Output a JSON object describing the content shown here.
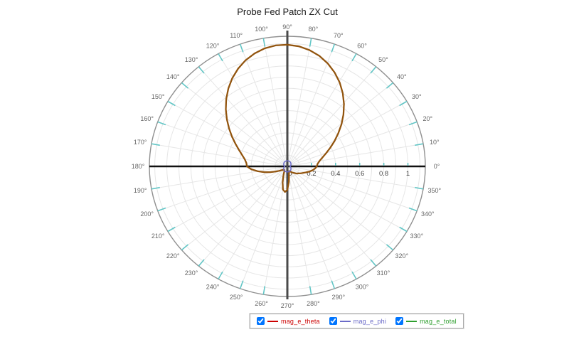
{
  "chart_data": {
    "type": "line",
    "subtype": "polar",
    "title": "Probe Fed Patch ZX Cut",
    "angle_unit": "deg",
    "angle_tick_labels": [
      "0°",
      "10°",
      "20°",
      "30°",
      "40°",
      "50°",
      "60°",
      "70°",
      "80°",
      "90°",
      "100°",
      "110°",
      "120°",
      "130°",
      "140°",
      "150°",
      "160°",
      "170°",
      "180°",
      "190°",
      "200°",
      "210°",
      "220°",
      "230°",
      "240°",
      "250°",
      "260°",
      "270°",
      "280°",
      "290°",
      "300°",
      "310°",
      "320°",
      "330°",
      "340°",
      "350°"
    ],
    "extra_angle_label": "350°",
    "radial_tick_labels": [
      "0",
      "0.2",
      "0.4",
      "0.6",
      "0.8",
      "1"
    ],
    "radial_ticks": [
      0,
      0.2,
      0.4,
      0.6,
      0.8,
      1.0
    ],
    "rmax": 1.15,
    "grid": true,
    "grid_ring_step": 0.1,
    "legend_position": "bottom",
    "angles_deg": [
      0,
      5,
      10,
      15,
      20,
      25,
      30,
      35,
      40,
      45,
      50,
      55,
      60,
      65,
      70,
      75,
      80,
      85,
      90,
      95,
      100,
      105,
      110,
      115,
      120,
      125,
      130,
      135,
      140,
      145,
      150,
      155,
      160,
      165,
      170,
      175,
      180,
      185,
      190,
      195,
      200,
      205,
      210,
      215,
      220,
      225,
      230,
      235,
      240,
      245,
      250,
      255,
      260,
      265,
      270,
      275,
      280,
      285,
      290,
      295,
      300,
      305,
      310,
      315,
      320,
      325,
      330,
      335,
      340,
      345,
      350,
      355,
      360
    ],
    "series": [
      {
        "name": "mag_e_theta",
        "color": "#cc0000",
        "checked": true,
        "values": [
          0.245,
          0.251,
          0.27,
          0.3,
          0.341,
          0.392,
          0.451,
          0.516,
          0.586,
          0.658,
          0.731,
          0.801,
          0.868,
          0.928,
          0.981,
          1.025,
          1.058,
          1.08,
          1.09,
          1.088,
          1.074,
          1.048,
          1.012,
          0.966,
          0.913,
          0.853,
          0.788,
          0.722,
          0.655,
          0.59,
          0.529,
          0.474,
          0.426,
          0.387,
          0.358,
          0.341,
          0.335,
          0.3,
          0.25,
          0.2,
          0.15,
          0.11,
          0.08,
          0.06,
          0.05,
          0.042,
          0.04,
          0.042,
          0.05,
          0.07,
          0.1,
          0.15,
          0.21,
          0.23,
          0.21,
          0.14,
          0.08,
          0.05,
          0.045,
          0.05,
          0.055,
          0.065,
          0.075,
          0.085,
          0.1,
          0.11,
          0.125,
          0.14,
          0.16,
          0.185,
          0.21,
          0.23,
          0.245
        ]
      },
      {
        "name": "mag_e_phi",
        "color": "#6b6bc8",
        "checked": true,
        "values": [
          0.02,
          0.023,
          0.025,
          0.028,
          0.03,
          0.033,
          0.035,
          0.037,
          0.039,
          0.041,
          0.043,
          0.045,
          0.046,
          0.047,
          0.048,
          0.049,
          0.05,
          0.05,
          0.05,
          0.05,
          0.05,
          0.049,
          0.048,
          0.047,
          0.046,
          0.045,
          0.043,
          0.041,
          0.039,
          0.037,
          0.035,
          0.033,
          0.03,
          0.028,
          0.025,
          0.023,
          0.02,
          0.023,
          0.025,
          0.028,
          0.03,
          0.033,
          0.035,
          0.037,
          0.039,
          0.041,
          0.043,
          0.045,
          0.046,
          0.047,
          0.048,
          0.049,
          0.05,
          0.05,
          0.05,
          0.05,
          0.05,
          0.049,
          0.048,
          0.047,
          0.046,
          0.045,
          0.043,
          0.041,
          0.039,
          0.037,
          0.035,
          0.033,
          0.03,
          0.028,
          0.025,
          0.023,
          0.02
        ]
      },
      {
        "name": "mag_e_total",
        "color": "#2e9e2e",
        "checked": true,
        "values": [
          0.245,
          0.251,
          0.27,
          0.3,
          0.341,
          0.392,
          0.451,
          0.516,
          0.586,
          0.658,
          0.731,
          0.801,
          0.868,
          0.928,
          0.981,
          1.025,
          1.058,
          1.08,
          1.09,
          1.088,
          1.074,
          1.048,
          1.012,
          0.966,
          0.913,
          0.853,
          0.788,
          0.722,
          0.655,
          0.59,
          0.529,
          0.474,
          0.426,
          0.387,
          0.358,
          0.341,
          0.335,
          0.3,
          0.25,
          0.2,
          0.15,
          0.11,
          0.08,
          0.06,
          0.05,
          0.042,
          0.04,
          0.042,
          0.05,
          0.07,
          0.1,
          0.15,
          0.21,
          0.23,
          0.21,
          0.14,
          0.08,
          0.05,
          0.045,
          0.05,
          0.055,
          0.065,
          0.075,
          0.085,
          0.1,
          0.11,
          0.125,
          0.14,
          0.16,
          0.185,
          0.21,
          0.23,
          0.245
        ]
      }
    ],
    "colors": {
      "outer_ring": "#8f8f8f",
      "grid": "#e6e6e6",
      "tick_teal": "#63c6c6",
      "axis_horizontal": "#111111",
      "axis_vertical": "#4a4a4a",
      "angle_label": "#666666",
      "radial_label": "#444444",
      "overlap_curve": "#a0521e"
    }
  }
}
